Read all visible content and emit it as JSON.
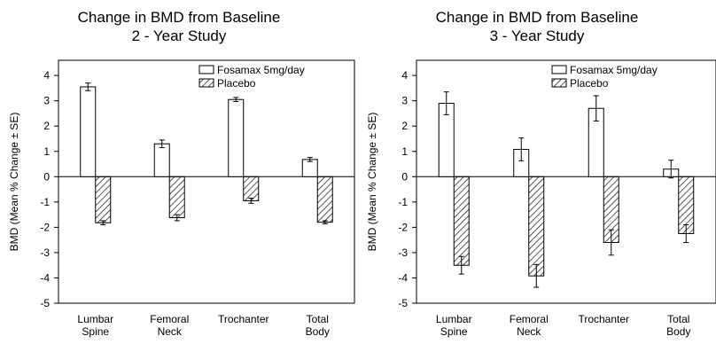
{
  "chart_data": [
    {
      "type": "bar",
      "title": "Change in BMD from Baseline",
      "subtitle": "2 - Year Study",
      "ylabel": "BMD (Mean % Change ± SE)",
      "xlabel": "",
      "ylim": [
        -5,
        4.6
      ],
      "yticks": [
        4,
        3,
        2,
        1,
        0,
        -1,
        -2,
        -3,
        -4,
        -5
      ],
      "categories": [
        [
          "Lumbar",
          "Spine"
        ],
        [
          "Femoral",
          "Neck"
        ],
        [
          "Trochanter"
        ],
        [
          "Total",
          "Body"
        ]
      ],
      "legend_position": "top-right",
      "series": [
        {
          "name": "Fosamax 5mg/day",
          "pattern": "hollow",
          "values": [
            3.55,
            1.3,
            3.05,
            0.68
          ],
          "se": [
            0.15,
            0.15,
            0.08,
            0.08
          ]
        },
        {
          "name": "Placebo",
          "pattern": "hatched",
          "values": [
            -1.82,
            -1.62,
            -0.95,
            -1.8
          ],
          "se": [
            0.08,
            0.12,
            0.1,
            0.06
          ]
        }
      ]
    },
    {
      "type": "bar",
      "title": "Change in BMD from Baseline",
      "subtitle": "3 - Year Study",
      "ylabel": "BMD (Mean % Change ± SE)",
      "xlabel": "",
      "ylim": [
        -5,
        4.6
      ],
      "yticks": [
        4,
        3,
        2,
        1,
        0,
        -1,
        -2,
        -3,
        -4,
        -5
      ],
      "categories": [
        [
          "Lumbar",
          "Spine"
        ],
        [
          "Femoral",
          "Neck"
        ],
        [
          "Trochanter"
        ],
        [
          "Total",
          "Body"
        ]
      ],
      "legend_position": "top-right",
      "series": [
        {
          "name": "Fosamax 5mg/day",
          "pattern": "hollow",
          "values": [
            2.9,
            1.08,
            2.7,
            0.3
          ],
          "se": [
            0.45,
            0.45,
            0.5,
            0.35
          ]
        },
        {
          "name": "Placebo",
          "pattern": "hatched",
          "values": [
            -3.5,
            -3.92,
            -2.6,
            -2.25
          ],
          "se": [
            0.35,
            0.45,
            0.5,
            0.35
          ]
        }
      ]
    }
  ]
}
